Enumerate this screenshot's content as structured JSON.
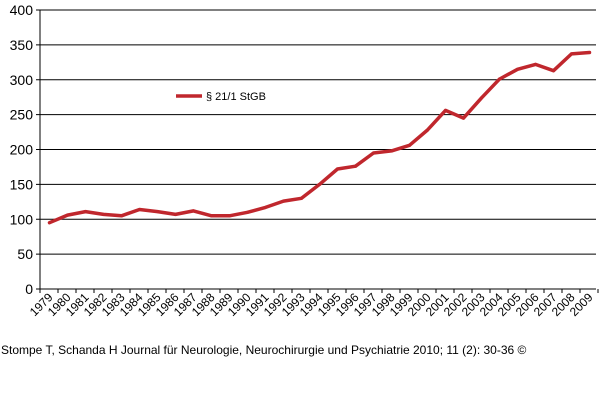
{
  "chart_data": {
    "type": "line",
    "title": "",
    "xlabel": "",
    "ylabel": "",
    "ylim": [
      0,
      400
    ],
    "yticks": [
      0,
      50,
      100,
      150,
      200,
      250,
      300,
      350,
      400
    ],
    "grid": "horizontal",
    "legend_position": "upper-left",
    "x": [
      "1979",
      "1980",
      "1981",
      "1982",
      "1983",
      "1984",
      "1985",
      "1986",
      "1987",
      "1988",
      "1989",
      "1990",
      "1991",
      "1992",
      "1993",
      "1994",
      "1995",
      "1996",
      "1997",
      "1998",
      "1999",
      "2000",
      "2001",
      "2002",
      "2003",
      "2004",
      "2005",
      "2006",
      "2007",
      "2008",
      "2009"
    ],
    "series": [
      {
        "name": "§ 21/1 StGB",
        "color": "#c0272d",
        "values": [
          95,
          106,
          111,
          107,
          105,
          114,
          111,
          107,
          112,
          105,
          105,
          110,
          117,
          126,
          130,
          150,
          172,
          176,
          195,
          198,
          206,
          228,
          256,
          245,
          274,
          301,
          315,
          322,
          313,
          337,
          339
        ]
      }
    ]
  },
  "caption": "Stompe T, Schanda H Journal für Neurologie, Neurochirurgie und Psychiatrie 2010; 11 (2): 30-36 ©"
}
